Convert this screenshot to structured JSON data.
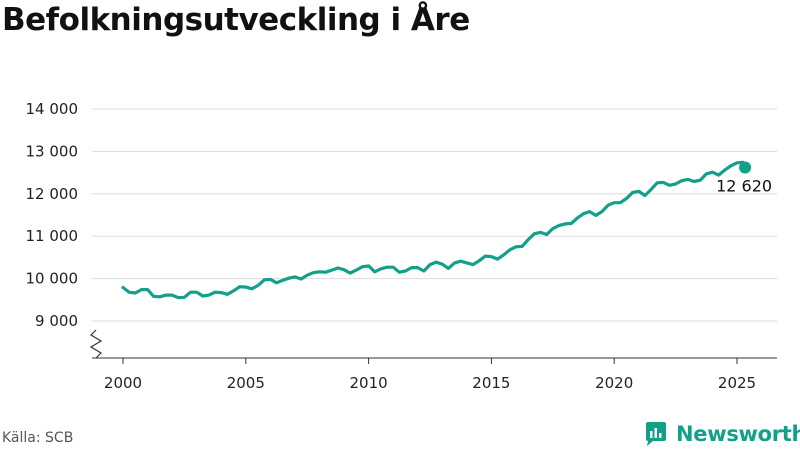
{
  "title": "Befolkningsutveckling i Åre",
  "source": "Källa: SCB",
  "brand": {
    "name": "Newsworthy",
    "color": "#13a08a",
    "icon": "newsworthy-logo-icon"
  },
  "colors": {
    "line": "#13a08a",
    "grid": "#dddddd",
    "axis": "#333333",
    "text": "#222222"
  },
  "chart_data": {
    "type": "line",
    "title": "Befolkningsutveckling i Åre",
    "xlabel": "",
    "ylabel": "",
    "xlim": [
      1999.5,
      2026.8
    ],
    "ylim": [
      8800,
      14000
    ],
    "y_axis_break": true,
    "grid": "horizontal",
    "xticks": [
      {
        "value": 2000,
        "label": "2000"
      },
      {
        "value": 2005,
        "label": "2005"
      },
      {
        "value": 2010,
        "label": "2010"
      },
      {
        "value": 2015,
        "label": "2015"
      },
      {
        "value": 2020,
        "label": "2020"
      },
      {
        "value": 2025,
        "label": "2025"
      }
    ],
    "yticks": [
      {
        "value": 9000,
        "label": "9 000"
      },
      {
        "value": 10000,
        "label": "10 000"
      },
      {
        "value": 11000,
        "label": "11 000"
      },
      {
        "value": 12000,
        "label": "12 000"
      },
      {
        "value": 13000,
        "label": "13 000"
      },
      {
        "value": 14000,
        "label": "14 000"
      }
    ],
    "end_label": "12 620",
    "series": [
      {
        "color": "#13a08a",
        "points": [
          [
            2000.0,
            9790
          ],
          [
            2000.25,
            9680
          ],
          [
            2000.5,
            9660
          ],
          [
            2000.75,
            9740
          ],
          [
            2001.0,
            9740
          ],
          [
            2001.25,
            9580
          ],
          [
            2001.5,
            9570
          ],
          [
            2001.75,
            9610
          ],
          [
            2002.0,
            9610
          ],
          [
            2002.25,
            9550
          ],
          [
            2002.5,
            9560
          ],
          [
            2002.75,
            9680
          ],
          [
            2003.0,
            9680
          ],
          [
            2003.25,
            9590
          ],
          [
            2003.5,
            9610
          ],
          [
            2003.75,
            9680
          ],
          [
            2004.0,
            9670
          ],
          [
            2004.25,
            9630
          ],
          [
            2004.5,
            9710
          ],
          [
            2004.75,
            9810
          ],
          [
            2005.0,
            9800
          ],
          [
            2005.25,
            9760
          ],
          [
            2005.5,
            9840
          ],
          [
            2005.75,
            9970
          ],
          [
            2006.0,
            9980
          ],
          [
            2006.25,
            9900
          ],
          [
            2006.5,
            9960
          ],
          [
            2006.75,
            10010
          ],
          [
            2007.0,
            10040
          ],
          [
            2007.25,
            9990
          ],
          [
            2007.5,
            10080
          ],
          [
            2007.75,
            10140
          ],
          [
            2008.0,
            10160
          ],
          [
            2008.25,
            10150
          ],
          [
            2008.5,
            10200
          ],
          [
            2008.75,
            10250
          ],
          [
            2009.0,
            10210
          ],
          [
            2009.25,
            10130
          ],
          [
            2009.5,
            10200
          ],
          [
            2009.75,
            10280
          ],
          [
            2010.0,
            10300
          ],
          [
            2010.25,
            10160
          ],
          [
            2010.5,
            10230
          ],
          [
            2010.75,
            10270
          ],
          [
            2011.0,
            10270
          ],
          [
            2011.25,
            10150
          ],
          [
            2011.5,
            10180
          ],
          [
            2011.75,
            10260
          ],
          [
            2012.0,
            10260
          ],
          [
            2012.25,
            10180
          ],
          [
            2012.5,
            10330
          ],
          [
            2012.75,
            10390
          ],
          [
            2013.0,
            10340
          ],
          [
            2013.25,
            10240
          ],
          [
            2013.5,
            10370
          ],
          [
            2013.75,
            10410
          ],
          [
            2014.0,
            10370
          ],
          [
            2014.25,
            10330
          ],
          [
            2014.5,
            10420
          ],
          [
            2014.75,
            10530
          ],
          [
            2015.0,
            10520
          ],
          [
            2015.25,
            10460
          ],
          [
            2015.5,
            10560
          ],
          [
            2015.75,
            10680
          ],
          [
            2016.0,
            10750
          ],
          [
            2016.25,
            10760
          ],
          [
            2016.5,
            10920
          ],
          [
            2016.75,
            11060
          ],
          [
            2017.0,
            11090
          ],
          [
            2017.25,
            11040
          ],
          [
            2017.5,
            11180
          ],
          [
            2017.75,
            11250
          ],
          [
            2018.0,
            11290
          ],
          [
            2018.25,
            11300
          ],
          [
            2018.5,
            11430
          ],
          [
            2018.75,
            11530
          ],
          [
            2019.0,
            11580
          ],
          [
            2019.25,
            11490
          ],
          [
            2019.5,
            11580
          ],
          [
            2019.75,
            11730
          ],
          [
            2020.0,
            11790
          ],
          [
            2020.25,
            11790
          ],
          [
            2020.5,
            11890
          ],
          [
            2020.75,
            12030
          ],
          [
            2021.0,
            12060
          ],
          [
            2021.25,
            11960
          ],
          [
            2021.5,
            12100
          ],
          [
            2021.75,
            12260
          ],
          [
            2022.0,
            12270
          ],
          [
            2022.25,
            12200
          ],
          [
            2022.5,
            12230
          ],
          [
            2022.75,
            12310
          ],
          [
            2023.0,
            12340
          ],
          [
            2023.25,
            12290
          ],
          [
            2023.5,
            12320
          ],
          [
            2023.75,
            12470
          ],
          [
            2024.0,
            12510
          ],
          [
            2024.25,
            12440
          ],
          [
            2024.5,
            12560
          ],
          [
            2024.75,
            12660
          ],
          [
            2025.0,
            12730
          ],
          [
            2025.25,
            12740
          ],
          [
            2025.33,
            12620
          ]
        ]
      }
    ]
  }
}
